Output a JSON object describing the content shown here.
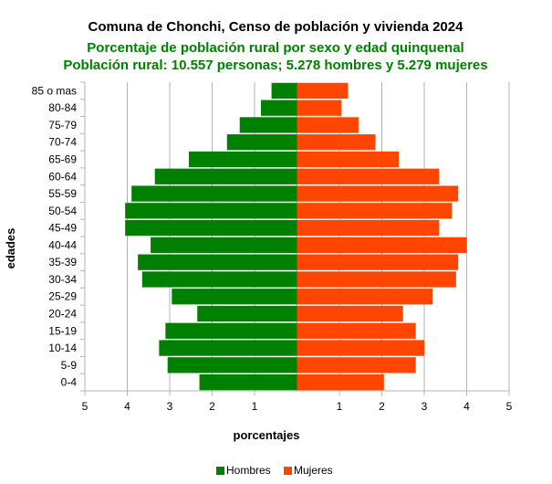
{
  "chart_data": {
    "type": "bar",
    "orientation": "horizontal-population-pyramid",
    "title": "Comuna de Chonchi, Censo de población y vivienda 2024",
    "subtitle": [
      "Porcentaje de población rural por sexo y edad quinquenal",
      "Población rural: 10.557 personas; 5.278 hombres y 5.279 mujeres"
    ],
    "xlabel": "porcentajes",
    "ylabel": "edades",
    "xlim": [
      -5,
      5
    ],
    "x_ticks": [
      -5,
      -4,
      -3,
      -2,
      -1,
      1,
      2,
      3,
      4,
      5
    ],
    "x_tick_labels": [
      "5",
      "4",
      "3",
      "2",
      "1",
      "1",
      "2",
      "3",
      "4",
      "5"
    ],
    "grid": true,
    "legend_position": "bottom-center",
    "categories": [
      "0-4",
      "5-9",
      "10-14",
      "15-19",
      "20-24",
      "25-29",
      "30-34",
      "35-39",
      "40-44",
      "45-49",
      "50-54",
      "55-59",
      "60-64",
      "65-69",
      "70-74",
      "75-79",
      "80-84",
      "85 o mas"
    ],
    "series": [
      {
        "name": "Hombres",
        "color": "#008000",
        "values": [
          2.3,
          3.05,
          3.25,
          3.1,
          2.35,
          2.95,
          3.65,
          3.75,
          3.45,
          4.05,
          4.05,
          3.9,
          3.35,
          2.55,
          1.65,
          1.35,
          0.85,
          0.6
        ]
      },
      {
        "name": "Mujeres",
        "color": "#ff4500",
        "values": [
          2.05,
          2.8,
          3.0,
          2.8,
          2.5,
          3.2,
          3.75,
          3.8,
          4.0,
          3.35,
          3.65,
          3.8,
          3.35,
          2.4,
          1.85,
          1.45,
          1.05,
          1.2
        ]
      }
    ]
  }
}
